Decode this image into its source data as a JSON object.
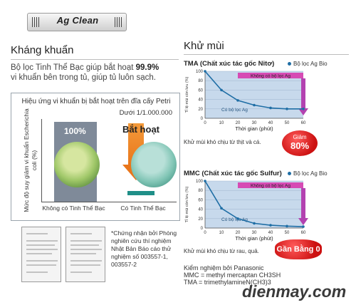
{
  "banner": {
    "title": "Ag Clean"
  },
  "left": {
    "heading": "Kháng khuẩn",
    "desc_line1_pre": "Bộ lọc Tinh Thể Bạc giúp bắt hoạt ",
    "desc_line1_bold": "99.9%",
    "desc_line2": "vi khuẩn bên trong tủ, giúp tủ luôn sạch.",
    "petri": {
      "title": "Hiệu ứng vi khuẩn bị bắt hoạt trên đĩa cấy Petri",
      "subtitle": "Dưới 1/1.000.000",
      "y_label": "Mức độ suy giảm vi khuẩn Escherichia coli (%)",
      "bar_label": "100%",
      "inactivated": "Bắt hoạt",
      "x_labels": [
        "Không có Tinh Thể Bạc",
        "Có Tinh Thể Bạc"
      ]
    },
    "note": "*Chứng nhận bởi Phòng nghiên cứu thí nghiệm Nhật Bản Báo cáo thử nghiệm số 003557-1, 003557-2"
  },
  "right": {
    "heading": "Khử mùi",
    "chart1": {
      "title": "TMA (Chất xúc tác gốc Nitơ)",
      "legend": "Bộ lọc Ag Bio",
      "band_top": "Không có bộ lọc Ag",
      "band_bottom": "Có bộ lọc Ag",
      "xlabel": "Thời gian (phút)",
      "ylabel": "Tỉ lệ mùi còn lưu (%)",
      "caption": "Khử mùi khó chịu từ thịt và cá.",
      "badge_line1": "Giảm",
      "badge_line2": "80%"
    },
    "chart2": {
      "title": "MMC (Chất xúc tác gốc Sulfur)",
      "legend": "Bộ lọc Ag Bio",
      "band_top": "Không có bộ lọc Ag",
      "band_bottom": "Có bộ lọc Ag",
      "xlabel": "Thời gian (phút)",
      "ylabel": "Tỉ lệ mùi còn lưu (%)",
      "caption": "Khử mùi khó chịu từ rau, quả.",
      "badge": "Gần Bằng 0"
    },
    "footer": {
      "line1": "Kiểm nghiệm bởi Panasonic",
      "line2": "MMC = methyl mercaptan CH3SH",
      "line3": "TMA  = trimethylamineN(CH3)3"
    }
  },
  "brand": "dienmay.com",
  "colors": {
    "band_top": "#d64bb4",
    "band_bottom": "#bcd3ea",
    "curve": "#1f6ea5",
    "badge": "#e32222",
    "arrow": "#ec7d1f"
  },
  "chart_data": [
    {
      "type": "line",
      "title": "TMA (Chất xúc tác gốc Nitơ)",
      "xlabel": "Thời gian (phút)",
      "ylabel": "Tỉ lệ mùi còn lưu (%)",
      "x": [
        0,
        10,
        20,
        30,
        40,
        50,
        60
      ],
      "series": [
        {
          "name": "Bộ lọc Ag Bio",
          "values": [
            100,
            60,
            38,
            28,
            22,
            20,
            20
          ]
        }
      ],
      "xlim": [
        0,
        60
      ],
      "ylim": [
        0,
        100
      ],
      "x_ticks": [
        0,
        10,
        20,
        30,
        40,
        50,
        60
      ],
      "y_ticks": [
        0,
        20,
        40,
        60,
        80,
        100
      ]
    },
    {
      "type": "line",
      "title": "MMC (Chất xúc tác gốc Sulfur)",
      "xlabel": "Thời gian (phút)",
      "ylabel": "Tỉ lệ mùi còn lưu (%)",
      "x": [
        0,
        10,
        20,
        30,
        40,
        50,
        60
      ],
      "series": [
        {
          "name": "Bộ lọc Ag Bio",
          "values": [
            100,
            42,
            20,
            10,
            6,
            4,
            3
          ]
        }
      ],
      "xlim": [
        0,
        60
      ],
      "ylim": [
        0,
        100
      ],
      "x_ticks": [
        0,
        10,
        20,
        30,
        40,
        50,
        60
      ],
      "y_ticks": [
        0,
        20,
        40,
        60,
        80,
        100
      ]
    }
  ]
}
